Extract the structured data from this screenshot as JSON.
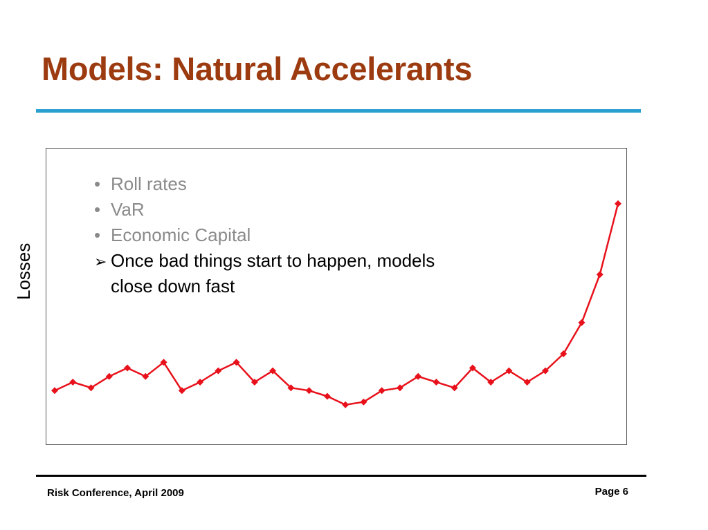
{
  "slide": {
    "title": "Models: Natural Accelerants",
    "footer_left": "Risk Conference, April 2009",
    "footer_right": "Page 6",
    "title_color": "#9c3a10",
    "rule_color": "#2aa0d0"
  },
  "bullets": {
    "marker": "•",
    "emph_marker": "➢",
    "items": [
      "Roll rates",
      "VaR",
      "Economic Capital"
    ],
    "emphasis": "Once bad things start to happen, models close down fast"
  },
  "chart_data": {
    "type": "line",
    "title": "",
    "xlabel": "",
    "ylabel": "Losses",
    "grid": false,
    "legend": "none",
    "line_color": "#e8111b",
    "marker": "diamond",
    "ylim": [
      0,
      100
    ],
    "series": [
      {
        "values": [
          17,
          20,
          18,
          22,
          25,
          22,
          27,
          17,
          20,
          24,
          27,
          20,
          24,
          18,
          17,
          15,
          12,
          13,
          17,
          18,
          22,
          20,
          18,
          25,
          20,
          24,
          20,
          24,
          30,
          41,
          58,
          83
        ]
      }
    ]
  }
}
